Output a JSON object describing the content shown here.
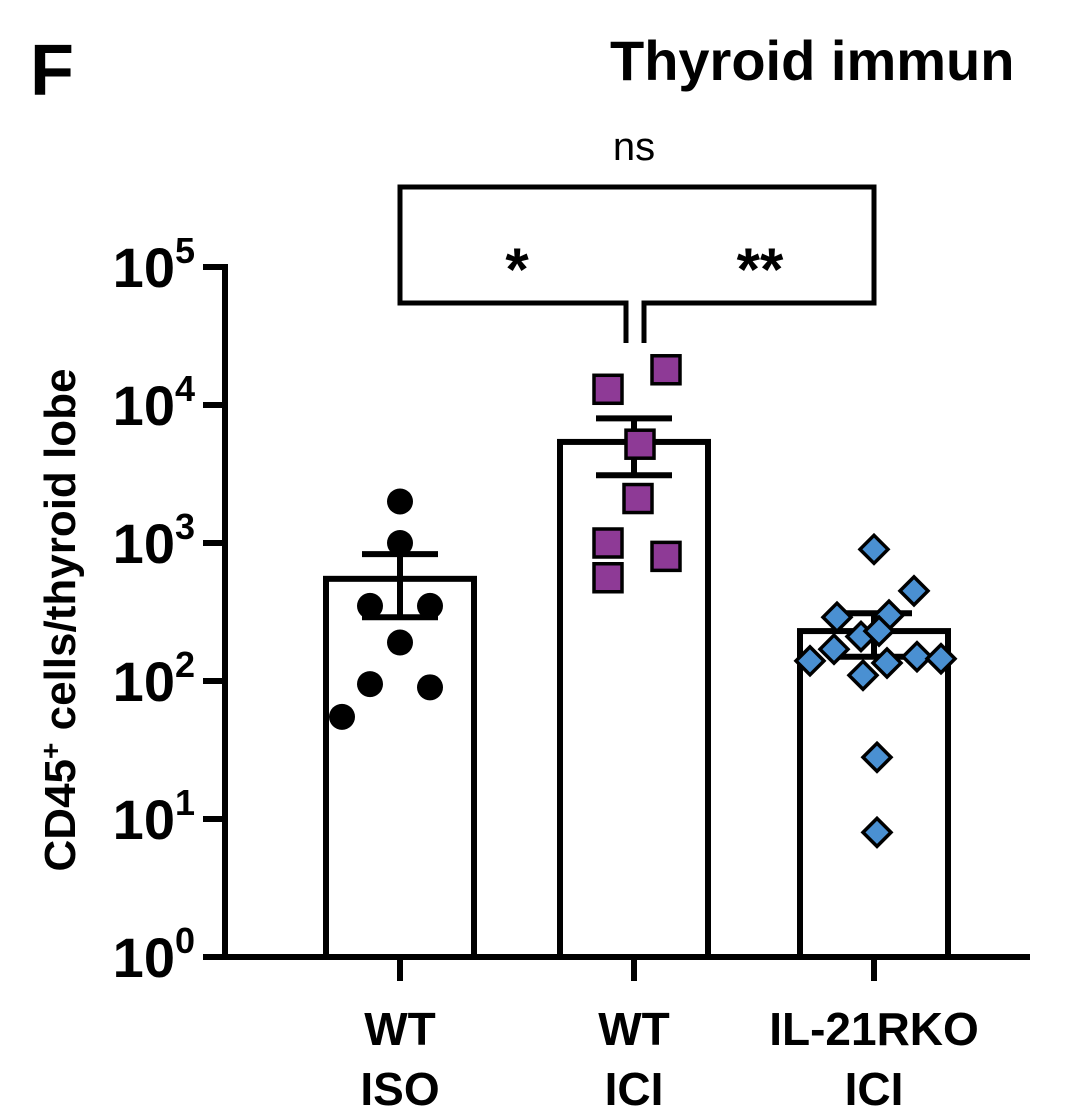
{
  "panel_label": "F",
  "chart_data": {
    "type": "bar",
    "title": "Thyroid immun",
    "ylabel_main": "CD45",
    "ylabel_sup": "+",
    "ylabel_rest": " cells/thyroid lobe",
    "xlabel": "",
    "yscale": "log",
    "ylim": [
      1,
      100000
    ],
    "yticks": [
      {
        "value": 1,
        "base": "10",
        "exp": "0"
      },
      {
        "value": 10,
        "base": "10",
        "exp": "1"
      },
      {
        "value": 100,
        "base": "10",
        "exp": "2"
      },
      {
        "value": 1000,
        "base": "10",
        "exp": "3"
      },
      {
        "value": 10000,
        "base": "10",
        "exp": "4"
      },
      {
        "value": 100000,
        "base": "10",
        "exp": "5"
      }
    ],
    "groups": [
      {
        "label_line1": "WT",
        "label_line2": "ISO",
        "mean": 550,
        "sem_low": 290,
        "sem_high": 830,
        "marker": "circle",
        "color": "#000000",
        "points": [
          {
            "value": 2000,
            "offset": 0
          },
          {
            "value": 1000,
            "offset": 0
          },
          {
            "value": 350,
            "offset": -30
          },
          {
            "value": 350,
            "offset": 30
          },
          {
            "value": 190,
            "offset": 0
          },
          {
            "value": 95,
            "offset": -30
          },
          {
            "value": 90,
            "offset": 30
          },
          {
            "value": 55,
            "offset": -58
          }
        ]
      },
      {
        "label_line1": "WT",
        "label_line2": "ICI",
        "mean": 5400,
        "sem_low": 3100,
        "sem_high": 8000,
        "marker": "square",
        "color": "#8e3a96",
        "points": [
          {
            "value": 18000,
            "offset": 32
          },
          {
            "value": 13000,
            "offset": -26
          },
          {
            "value": 5200,
            "offset": 6
          },
          {
            "value": 2100,
            "offset": 4
          },
          {
            "value": 1000,
            "offset": -26
          },
          {
            "value": 800,
            "offset": 32
          },
          {
            "value": 560,
            "offset": -26
          }
        ]
      },
      {
        "label_line1": "IL-21RKO",
        "label_line2": "ICI",
        "mean": 230,
        "sem_low": 150,
        "sem_high": 310,
        "marker": "diamond",
        "color": "#4a90d2",
        "points": [
          {
            "value": 900,
            "offset": 0
          },
          {
            "value": 450,
            "offset": 40
          },
          {
            "value": 300,
            "offset": 15
          },
          {
            "value": 290,
            "offset": -37
          },
          {
            "value": 210,
            "offset": -13
          },
          {
            "value": 230,
            "offset": 5
          },
          {
            "value": 170,
            "offset": -40
          },
          {
            "value": 150,
            "offset": 43
          },
          {
            "value": 140,
            "offset": -64
          },
          {
            "value": 145,
            "offset": 67
          },
          {
            "value": 135,
            "offset": 13
          },
          {
            "value": 110,
            "offset": -11
          },
          {
            "value": 28,
            "offset": 3
          },
          {
            "value": 8,
            "offset": 3
          }
        ]
      }
    ],
    "significance": [
      {
        "from": 0,
        "to": 2,
        "label": "ns"
      },
      {
        "from": 0,
        "to": 1,
        "label": "*"
      },
      {
        "from": 1,
        "to": 2,
        "label": "**"
      }
    ]
  }
}
